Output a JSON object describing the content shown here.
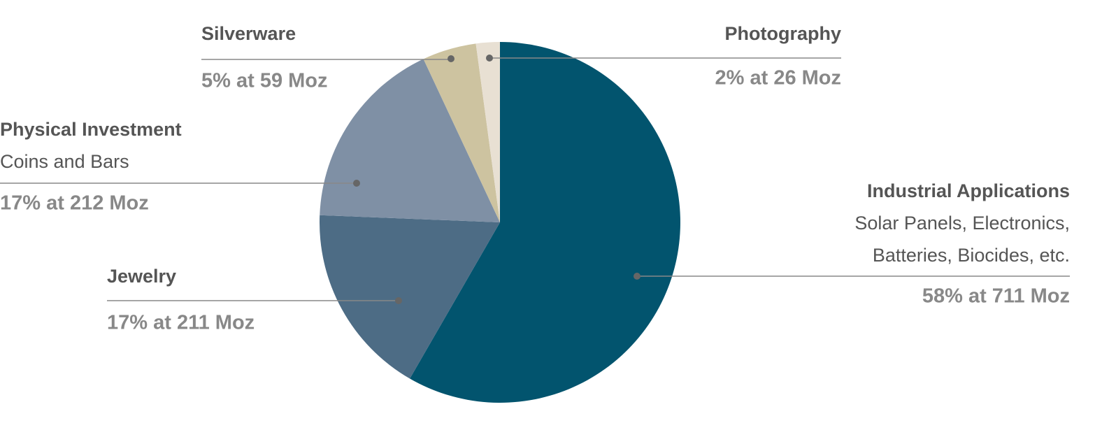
{
  "chart_data": {
    "type": "pie",
    "categories": [
      "Industrial Applications",
      "Jewelry",
      "Physical Investment",
      "Silverware",
      "Photography"
    ],
    "descriptions": [
      [
        "Solar Panels, Electronics,",
        "Batteries, Biocides, etc."
      ],
      [],
      [
        "Coins and Bars"
      ],
      [],
      []
    ],
    "values": [
      711,
      211,
      212,
      59,
      26
    ],
    "value_labels": [
      "58% at 711 Moz",
      "17% at 211 Moz",
      "17% at 212 Moz",
      "5% at 59 Moz",
      "2% at 26 Moz"
    ],
    "colors": [
      "#02546e",
      "#4d6c85",
      "#7f90a5",
      "#cdc3a0",
      "#e8e0d3"
    ]
  }
}
